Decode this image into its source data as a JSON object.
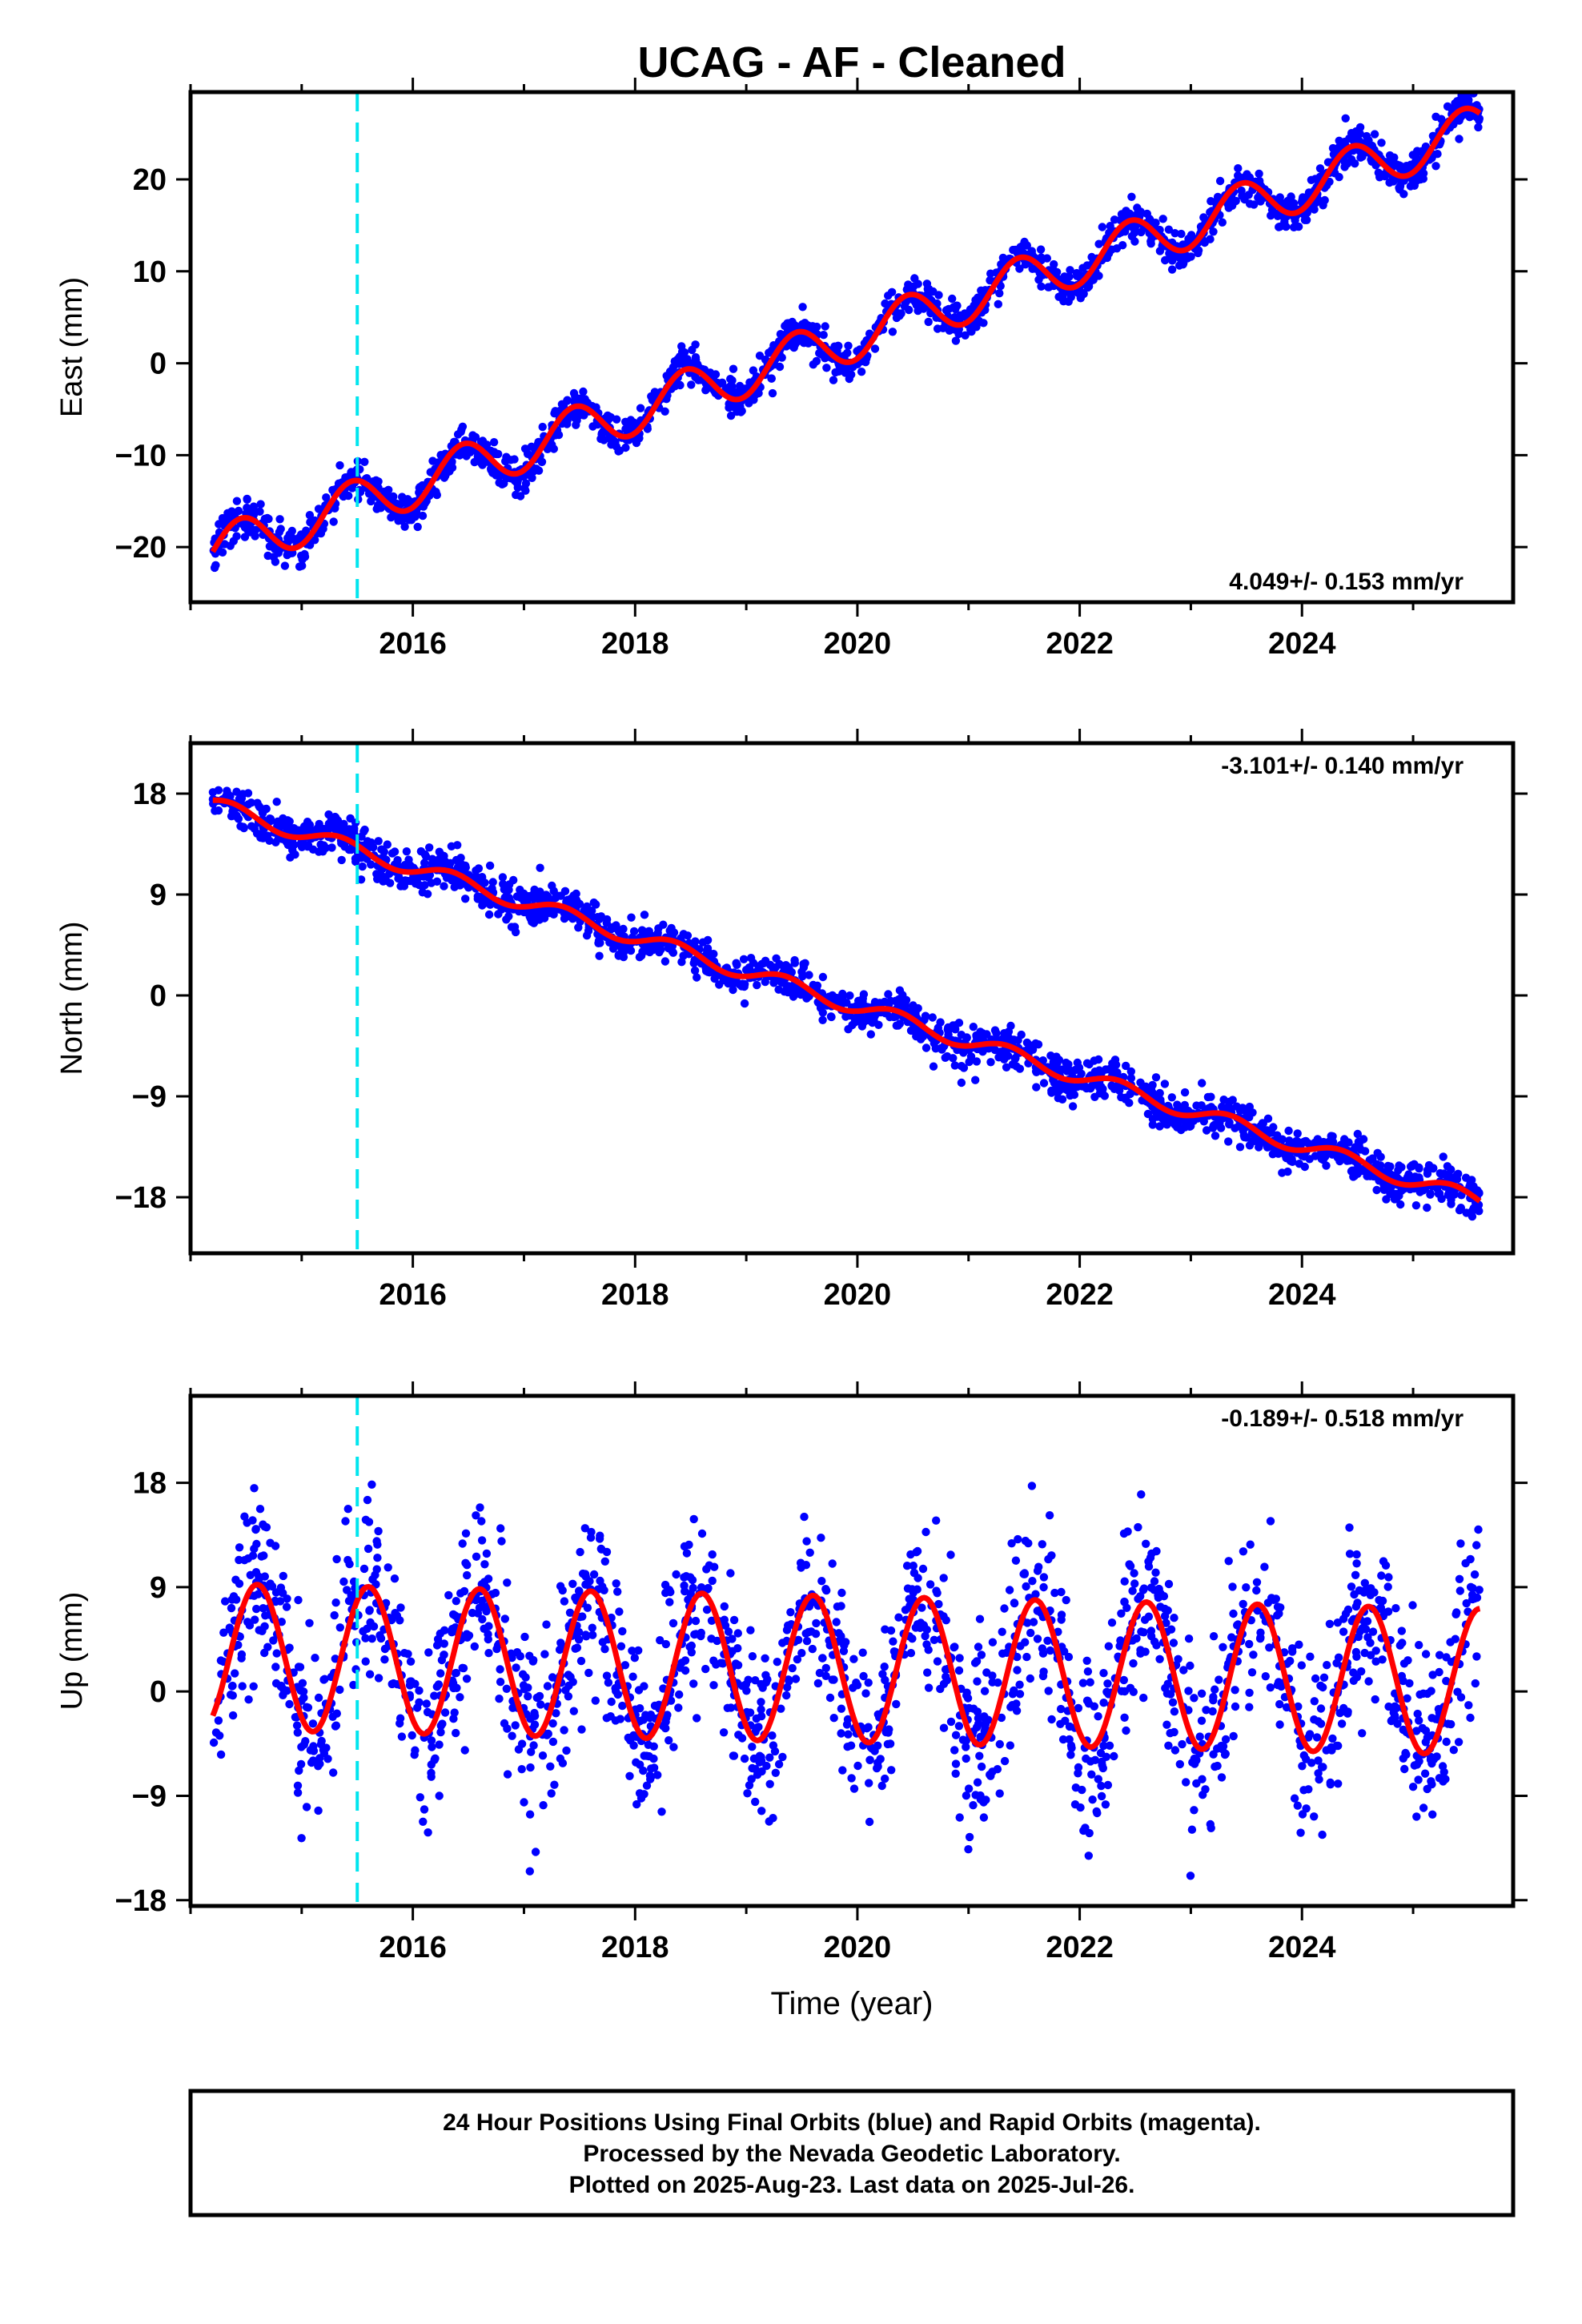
{
  "chart_data": [
    {
      "type": "scatter",
      "title": "UCAG  - AF - Cleaned",
      "ylabel": "East (mm)",
      "xlabel": "",
      "xlim": [
        2014.0,
        2025.9
      ],
      "ylim": [
        -26,
        29.5
      ],
      "x_ticks": [
        2016,
        2018,
        2020,
        2022,
        2024
      ],
      "y_ticks": [
        -20,
        -10,
        0,
        10,
        20
      ],
      "rate_label": "4.049+/- 0.153 mm/yr",
      "rate_position": "bottom-right",
      "marker_event_year": 2015.5,
      "series": [
        {
          "kind": "points",
          "color": "#0000ff",
          "x_range": [
            2014.2,
            2025.6
          ],
          "trend": {
            "ref_year": 2014.2,
            "ref_value": -20.5,
            "slope_per_year": 4.049
          },
          "annual": {
            "amplitude": 2.6,
            "peak_year_fraction": 0.45
          },
          "scatter_sd": 1.0
        },
        {
          "kind": "fit",
          "color": "#ff0000",
          "x_range": [
            2014.2,
            2025.6
          ],
          "trend": {
            "ref_year": 2014.2,
            "ref_value": -20.5,
            "slope_per_year": 4.049
          },
          "annual": {
            "amplitude": 2.6,
            "peak_year_fraction": 0.45
          }
        }
      ]
    },
    {
      "type": "scatter",
      "title": "",
      "ylabel": "North (mm)",
      "xlabel": "",
      "xlim": [
        2014.0,
        2025.9
      ],
      "ylim": [
        -23,
        22.5
      ],
      "x_ticks": [
        2016,
        2018,
        2020,
        2022,
        2024
      ],
      "y_ticks": [
        -18,
        -9,
        0,
        9,
        18
      ],
      "rate_label": "-3.101+/- 0.140 mm/yr",
      "rate_position": "top-right",
      "marker_event_year": 2015.5,
      "series": [
        {
          "kind": "points",
          "color": "#0000ff",
          "x_range": [
            2014.2,
            2025.6
          ],
          "trend": {
            "ref_year": 2014.2,
            "ref_value": 17.0,
            "slope_per_year": -3.101
          },
          "annual": {
            "amplitude": 0.7,
            "peak_year_fraction": 0.35
          },
          "scatter_sd": 0.9
        },
        {
          "kind": "fit",
          "color": "#ff0000",
          "x_range": [
            2014.2,
            2025.6
          ],
          "trend": {
            "ref_year": 2014.2,
            "ref_value": 17.0,
            "slope_per_year": -3.101
          },
          "annual": {
            "amplitude": 0.7,
            "peak_year_fraction": 0.35
          }
        }
      ]
    },
    {
      "type": "scatter",
      "title": "",
      "ylabel": "Up (mm)",
      "xlabel": "Time (year)",
      "xlim": [
        2014.0,
        2025.9
      ],
      "ylim": [
        -18.5,
        25.5
      ],
      "x_ticks": [
        2016,
        2018,
        2020,
        2022,
        2024
      ],
      "y_ticks": [
        -18,
        -9,
        0,
        9,
        18
      ],
      "rate_label": "-0.189+/- 0.518 mm/yr",
      "rate_position": "top-right",
      "marker_event_year": 2015.5,
      "series": [
        {
          "kind": "points",
          "color": "#0000ff",
          "x_range": [
            2014.2,
            2025.6
          ],
          "trend": {
            "ref_year": 2014.2,
            "ref_value": 3.0,
            "slope_per_year": -0.189
          },
          "annual": {
            "amplitude": 6.3,
            "peak_year_fraction": 0.6
          },
          "scatter_sd": 3.8
        },
        {
          "kind": "fit",
          "color": "#ff0000",
          "x_range": [
            2014.2,
            2025.6
          ],
          "trend": {
            "ref_year": 2014.2,
            "ref_value": 3.0,
            "slope_per_year": -0.189
          },
          "annual": {
            "amplitude": 6.3,
            "peak_year_fraction": 0.6
          }
        }
      ]
    }
  ],
  "footer": {
    "line1": "24 Hour Positions Using Final Orbits (blue) and Rapid Orbits (magenta).",
    "line2": "Processed by the Nevada Geodetic Laboratory.",
    "line3": "Plotted on 2025-Aug-23. Last data on 2025-Jul-26."
  },
  "colors": {
    "points": "#0000ff",
    "fit": "#ff0000",
    "event_line": "#00e5ee"
  }
}
